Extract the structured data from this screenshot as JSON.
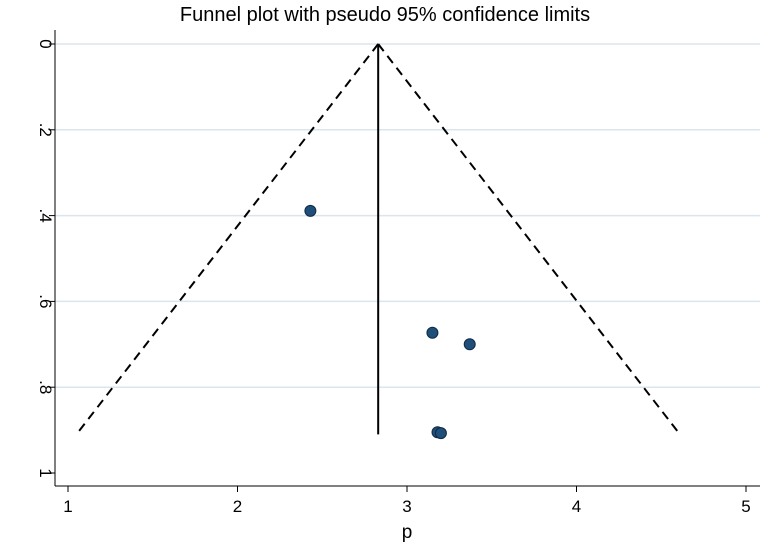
{
  "chart_data": {
    "type": "scatter",
    "title": "Funnel plot with pseudo 95% confidence limits",
    "xlabel": "p",
    "ylabel": "",
    "xlim": [
      1,
      5
    ],
    "ylim": [
      0,
      1
    ],
    "y_inverted": true,
    "xticks": [
      "1",
      "2",
      "3",
      "4",
      "5"
    ],
    "yticks": [
      "0",
      ".2",
      ".4",
      ".6",
      ".8",
      "1"
    ],
    "xtick_values": [
      1,
      2,
      3,
      4,
      5
    ],
    "ytick_values": [
      0,
      0.2,
      0.4,
      0.6,
      0.8,
      1
    ],
    "grid": true,
    "points": [
      {
        "x": 2.43,
        "y": 0.389
      },
      {
        "x": 3.15,
        "y": 0.673
      },
      {
        "x": 3.37,
        "y": 0.7
      },
      {
        "x": 3.18,
        "y": 0.905
      },
      {
        "x": 3.2,
        "y": 0.907
      }
    ],
    "pooled_estimate": {
      "x": 2.83,
      "y_range": [
        0,
        0.91
      ]
    },
    "confidence_limits": {
      "apex": {
        "x": 2.83,
        "y": 0
      },
      "left_end": {
        "x": 1.05,
        "y": 0.91
      },
      "right_end": {
        "x": 4.61,
        "y": 0.91
      },
      "style": "dashed"
    },
    "colors": {
      "point": "#1f4e79",
      "grid": "#dbe5ee",
      "line": "#000000"
    }
  }
}
